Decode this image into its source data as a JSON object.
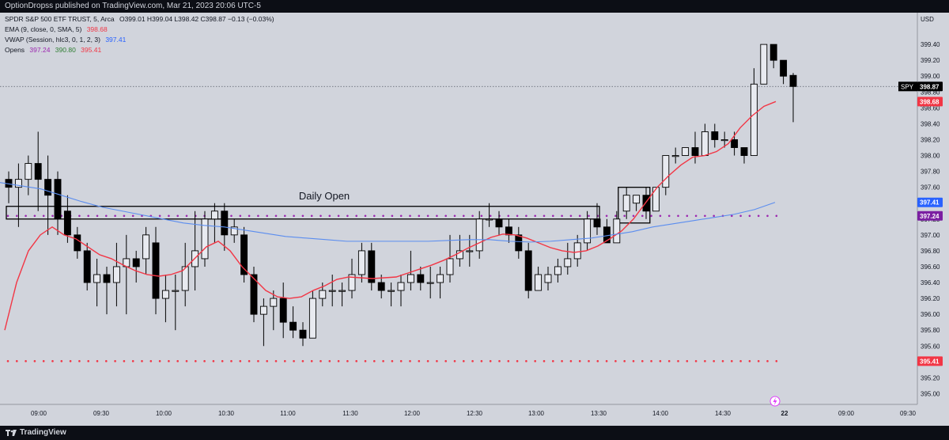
{
  "header": {
    "published": "OptionDropss published on TradingView.com, Mar 21, 2023 20:06 UTC-5"
  },
  "footer": {
    "brand": "TradingView"
  },
  "legend": {
    "instrument": "SPDR S&P 500 ETF TRUST, 5, Arca",
    "ohlc": "O399.01 H399.04 L398.42 C398.87 −0.13 (−0.03%)",
    "ema_label": "EMA (9, close, 0, SMA, 5)",
    "ema_value": "398.68",
    "vwap_label": "VWAP (Session, hlc3, 0, 1, 2, 3)",
    "vwap_value": "397.41",
    "opens_label": "Opens",
    "opens_values": [
      "397.24",
      "390.80",
      "395.41"
    ]
  },
  "colors": {
    "background": "#d1d4dc",
    "ema": "#f23645",
    "vwap": "#5b8def",
    "opens_purple": "#9c27b0",
    "opens_green": "#2e7d32",
    "opens_red": "#f23645",
    "candle_up": "#e8eaf0",
    "candle_down": "#000000"
  },
  "chart_data": {
    "type": "candlestick",
    "currency": "USD",
    "symbol": "SPY",
    "annotation": "Daily Open",
    "ylim": [
      394.8,
      399.6
    ],
    "y_ticks": [
      "395.00",
      "395.20",
      "395.41",
      "395.60",
      "395.80",
      "396.00",
      "396.20",
      "396.40",
      "396.60",
      "396.80",
      "397.00",
      "397.20",
      "397.41",
      "397.60",
      "397.80",
      "398.00",
      "398.20",
      "398.40",
      "398.60",
      "398.80",
      "399.00",
      "399.20",
      "399.40"
    ],
    "x_tick_labels": [
      "09:00",
      "09:30",
      "10:00",
      "10:30",
      "11:00",
      "11:30",
      "12:00",
      "12:30",
      "13:00",
      "13:30",
      "14:00",
      "14:30",
      "22",
      "09:00",
      "09:30"
    ],
    "price_labels": [
      {
        "label": "SPY",
        "value": "398.87"
      },
      {
        "value": "398.68"
      },
      {
        "value": "397.41"
      },
      {
        "value": "397.24"
      },
      {
        "value": "395.41"
      }
    ],
    "candles": [
      [
        397.7,
        397.6,
        397.8,
        397.4
      ],
      [
        397.6,
        397.7,
        397.9,
        397.1
      ],
      [
        397.7,
        397.9,
        398.0,
        397.5
      ],
      [
        397.9,
        397.7,
        398.3,
        397.3
      ],
      [
        397.7,
        397.5,
        398.0,
        397.0
      ],
      [
        397.7,
        397.2,
        397.8,
        397.0
      ],
      [
        397.3,
        397.0,
        397.5,
        396.9
      ],
      [
        397.0,
        396.8,
        397.1,
        396.7
      ],
      [
        396.8,
        396.4,
        396.9,
        396.3
      ],
      [
        396.4,
        396.5,
        396.7,
        396.1
      ],
      [
        396.5,
        396.4,
        396.6,
        396.0
      ],
      [
        396.4,
        396.6,
        396.9,
        396.1
      ],
      [
        396.6,
        396.7,
        397.0,
        396.0
      ],
      [
        396.7,
        396.6,
        396.8,
        396.4
      ],
      [
        396.7,
        397.0,
        397.1,
        396.5
      ],
      [
        396.9,
        396.2,
        397.1,
        396.0
      ],
      [
        396.2,
        396.3,
        396.5,
        395.9
      ],
      [
        396.3,
        396.3,
        396.5,
        395.8
      ],
      [
        396.3,
        396.6,
        396.9,
        396.1
      ],
      [
        396.6,
        396.8,
        397.3,
        396.3
      ],
      [
        396.7,
        397.2,
        397.3,
        396.6
      ],
      [
        397.2,
        397.3,
        397.4,
        396.9
      ],
      [
        397.3,
        397.0,
        397.4,
        396.8
      ],
      [
        397.0,
        397.1,
        397.2,
        396.9
      ],
      [
        397.0,
        396.5,
        397.1,
        396.4
      ],
      [
        396.5,
        396.0,
        396.6,
        395.9
      ],
      [
        396.0,
        396.1,
        396.2,
        395.6
      ],
      [
        396.1,
        396.2,
        396.3,
        395.8
      ],
      [
        396.2,
        395.9,
        396.4,
        395.7
      ],
      [
        395.9,
        395.8,
        396.1,
        395.7
      ],
      [
        395.8,
        395.7,
        395.9,
        395.6
      ],
      [
        395.7,
        396.2,
        396.3,
        395.7
      ],
      [
        396.2,
        396.3,
        396.4,
        396.1
      ],
      [
        396.3,
        396.3,
        396.5,
        396.1
      ],
      [
        396.3,
        396.3,
        396.4,
        396.1
      ],
      [
        396.3,
        396.5,
        396.7,
        396.2
      ],
      [
        396.5,
        396.8,
        396.9,
        396.4
      ],
      [
        396.8,
        396.4,
        396.9,
        396.3
      ],
      [
        396.4,
        396.3,
        396.5,
        396.2
      ],
      [
        396.3,
        396.3,
        396.4,
        396.1
      ],
      [
        396.3,
        396.4,
        396.5,
        396.1
      ],
      [
        396.4,
        396.5,
        396.8,
        396.3
      ],
      [
        396.5,
        396.4,
        396.6,
        396.3
      ],
      [
        396.4,
        396.4,
        396.6,
        396.2
      ],
      [
        396.4,
        396.5,
        396.6,
        396.2
      ],
      [
        396.5,
        396.7,
        397.0,
        396.4
      ],
      [
        396.7,
        396.8,
        397.0,
        396.6
      ],
      [
        396.8,
        396.8,
        397.0,
        396.6
      ],
      [
        396.8,
        397.2,
        397.3,
        396.7
      ],
      [
        397.2,
        397.2,
        397.4,
        397.1
      ],
      [
        397.2,
        397.1,
        397.3,
        397.0
      ],
      [
        397.1,
        397.0,
        397.2,
        396.9
      ],
      [
        397.0,
        396.8,
        397.1,
        396.7
      ],
      [
        396.8,
        396.3,
        396.9,
        396.2
      ],
      [
        396.3,
        396.5,
        396.6,
        396.3
      ],
      [
        396.4,
        396.5,
        396.6,
        396.3
      ],
      [
        396.5,
        396.6,
        396.7,
        396.4
      ],
      [
        396.6,
        396.7,
        396.9,
        396.5
      ],
      [
        396.7,
        396.9,
        397.0,
        396.6
      ],
      [
        396.9,
        397.2,
        397.3,
        396.8
      ],
      [
        397.2,
        397.1,
        397.4,
        397.0
      ],
      [
        397.1,
        396.9,
        397.2,
        396.9
      ],
      [
        396.9,
        397.2,
        397.3,
        396.9
      ],
      [
        397.3,
        397.5,
        397.6,
        397.2
      ],
      [
        397.4,
        397.5,
        397.5,
        397.3
      ],
      [
        397.5,
        397.3,
        397.6,
        397.2
      ],
      [
        397.3,
        397.6,
        397.6,
        397.3
      ],
      [
        397.6,
        398.0,
        398.0,
        397.5
      ],
      [
        398.0,
        398.0,
        398.1,
        397.9
      ],
      [
        398.0,
        398.1,
        398.1,
        398.0
      ],
      [
        398.1,
        398.0,
        398.3,
        397.9
      ],
      [
        398.0,
        398.3,
        398.4,
        398.0
      ],
      [
        398.3,
        398.2,
        398.4,
        398.1
      ],
      [
        398.2,
        398.2,
        398.3,
        398.1
      ],
      [
        398.2,
        398.1,
        398.3,
        398.0
      ],
      [
        398.1,
        398.0,
        398.1,
        397.9
      ],
      [
        398.0,
        398.9,
        399.1,
        398.0
      ],
      [
        398.9,
        399.4,
        399.4,
        398.9
      ],
      [
        399.4,
        399.2,
        399.4,
        399.1
      ],
      [
        399.2,
        399.0,
        399.2,
        398.9
      ],
      [
        399.01,
        398.87,
        399.04,
        398.42
      ]
    ],
    "ema": [
      395.8,
      396.4,
      396.8,
      397.0,
      397.1,
      397.0,
      396.95,
      396.85,
      396.75,
      396.7,
      396.62,
      396.55,
      396.5,
      396.48,
      396.5,
      396.55,
      396.7,
      396.85,
      396.92,
      396.8,
      396.6,
      396.45,
      396.3,
      396.22,
      396.2,
      396.22,
      396.3,
      396.36,
      396.44,
      396.47,
      396.46,
      396.45,
      396.46,
      396.47,
      396.52,
      396.57,
      396.62,
      396.68,
      396.75,
      396.83,
      396.9,
      396.97,
      397.01,
      397.0,
      396.96,
      396.9,
      396.84,
      396.8,
      396.78,
      396.8,
      396.86,
      396.95,
      397.05,
      397.2,
      397.4,
      397.6,
      397.75,
      397.88,
      397.98,
      398.0,
      398.05,
      398.15,
      398.35,
      398.5,
      398.62,
      398.68
    ],
    "vwap": [
      397.66,
      397.62,
      397.58,
      397.5,
      397.42,
      397.35,
      397.3,
      397.25,
      397.2,
      397.15,
      397.12,
      397.1,
      397.06,
      397.02,
      396.98,
      396.96,
      396.94,
      396.92,
      396.92,
      396.92,
      396.92,
      396.92,
      396.93,
      396.94,
      396.94,
      396.92,
      396.91,
      396.92,
      396.94,
      396.96,
      397.0,
      397.04,
      397.1,
      397.14,
      397.18,
      397.22,
      397.26,
      397.32,
      397.41
    ],
    "opens": [
      {
        "value": 397.24,
        "color": "purple"
      },
      {
        "value": 395.41,
        "color": "red"
      }
    ],
    "daily_open_box": [
      397.2,
      397.36
    ],
    "marked_box": [
      397.15,
      397.6
    ]
  }
}
